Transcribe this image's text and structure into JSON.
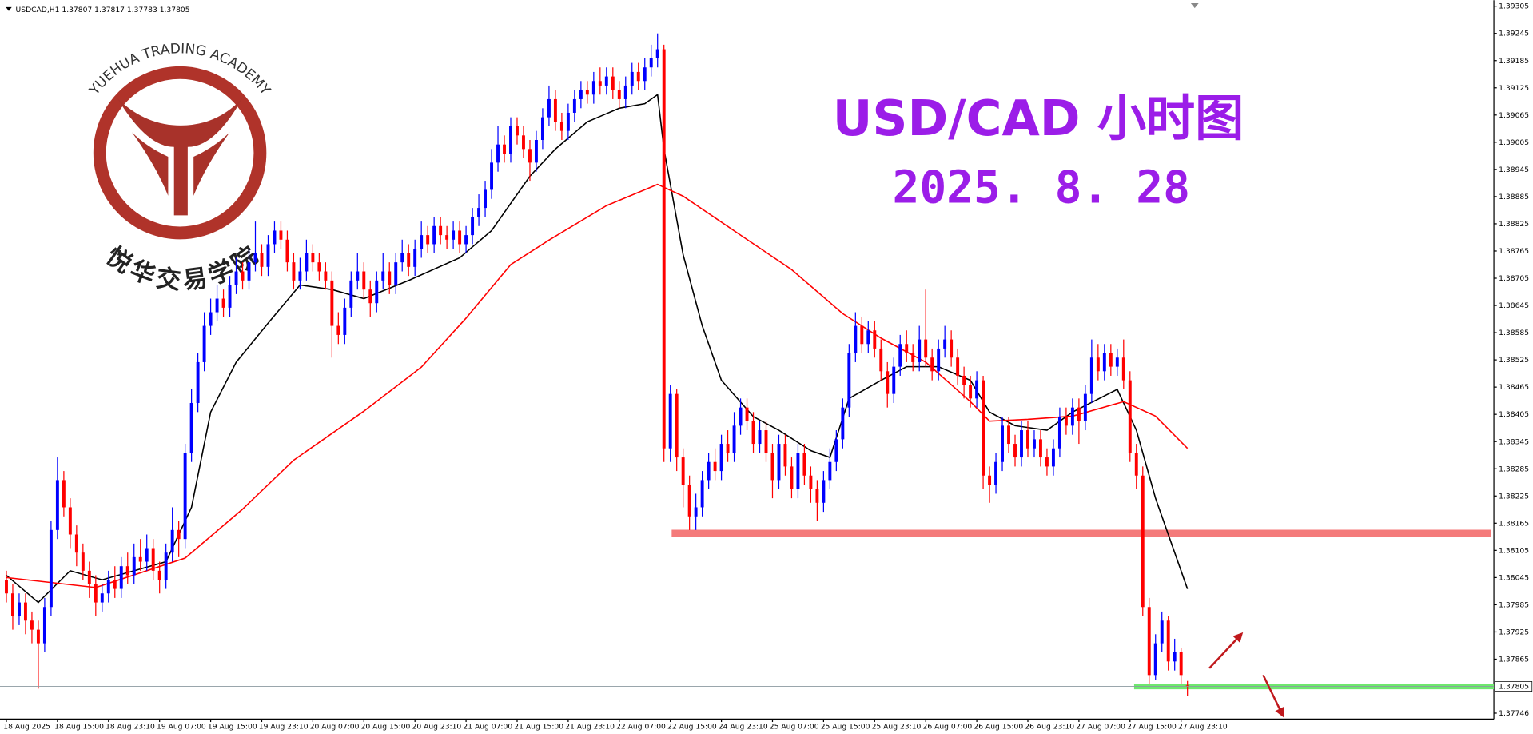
{
  "chart_data": {
    "type": "candlestick",
    "header": "USDCAD,H1 1.37807 1.37817 1.37783 1.37805",
    "title": "USD/CAD 小时图",
    "subtitle": "2025. 8. 28",
    "watermark": {
      "arc_text": "YUEHUA TRADING ACADEMY",
      "name": "悦华交易学院"
    },
    "up_color": "#0000ff",
    "down_color": "#ff0000",
    "title_color": "#9b1de8",
    "xlim": [
      -1,
      233
    ],
    "ylim": [
      1.37733,
      1.39318
    ],
    "xticks": [
      {
        "value": 0,
        "label": "18 Aug 2025"
      },
      {
        "value": 8,
        "label": "18 Aug 15:00"
      },
      {
        "value": 16,
        "label": "18 Aug 23:10"
      },
      {
        "value": 24,
        "label": "19 Aug 07:00"
      },
      {
        "value": 32,
        "label": "19 Aug 15:00"
      },
      {
        "value": 40,
        "label": "19 Aug 23:10"
      },
      {
        "value": 48,
        "label": "20 Aug 07:00"
      },
      {
        "value": 56,
        "label": "20 Aug 15:00"
      },
      {
        "value": 64,
        "label": "20 Aug 23:10"
      },
      {
        "value": 72,
        "label": "21 Aug 07:00"
      },
      {
        "value": 80,
        "label": "21 Aug 15:00"
      },
      {
        "value": 88,
        "label": "21 Aug 23:10"
      },
      {
        "value": 96,
        "label": "22 Aug 07:00"
      },
      {
        "value": 104,
        "label": "22 Aug 15:00"
      },
      {
        "value": 112,
        "label": "24 Aug 23:10"
      },
      {
        "value": 120,
        "label": "25 Aug 07:00"
      },
      {
        "value": 128,
        "label": "25 Aug 15:00"
      },
      {
        "value": 136,
        "label": "25 Aug 23:10"
      },
      {
        "value": 144,
        "label": "26 Aug 07:00"
      },
      {
        "value": 152,
        "label": "26 Aug 15:00"
      },
      {
        "value": 160,
        "label": "26 Aug 23:10"
      },
      {
        "value": 168,
        "label": "27 Aug 07:00"
      },
      {
        "value": 176,
        "label": "27 Aug 15:00"
      },
      {
        "value": 184,
        "label": "27 Aug 23:10"
      }
    ],
    "yticks": [
      1.39305,
      1.39245,
      1.39185,
      1.39125,
      1.39065,
      1.39005,
      1.38945,
      1.38885,
      1.38825,
      1.38765,
      1.38705,
      1.38645,
      1.38585,
      1.38525,
      1.38465,
      1.38405,
      1.38345,
      1.38285,
      1.38225,
      1.38165,
      1.38105,
      1.38045,
      1.37985,
      1.37925,
      1.37865,
      1.37746
    ],
    "open": [
      1.3804,
      1.3801,
      1.3796,
      1.3799,
      1.3795,
      1.3793,
      1.379,
      1.3798,
      1.3815,
      1.3826,
      1.382,
      1.3814,
      1.381,
      1.3806,
      1.3803,
      1.3799,
      1.3801,
      1.3804,
      1.3802,
      1.3807,
      1.3805,
      1.3809,
      1.3808,
      1.3811,
      1.3806,
      1.3804,
      1.381,
      1.3815,
      1.3813,
      1.3832,
      1.3843,
      1.3852,
      1.386,
      1.3863,
      1.3866,
      1.3864,
      1.3869,
      1.3872,
      1.387,
      1.3874,
      1.3876,
      1.3873,
      1.3878,
      1.3881,
      1.3879,
      1.3874,
      1.387,
      1.3872,
      1.3876,
      1.3874,
      1.3872,
      1.387,
      1.386,
      1.3858,
      1.3864,
      1.387,
      1.3872,
      1.3868,
      1.3865,
      1.387,
      1.3872,
      1.3869,
      1.3874,
      1.3876,
      1.3873,
      1.3877,
      1.388,
      1.3878,
      1.3882,
      1.388,
      1.3879,
      1.3881,
      1.3878,
      1.388,
      1.3884,
      1.3886,
      1.389,
      1.3896,
      1.39,
      1.3898,
      1.3904,
      1.3902,
      1.3899,
      1.3896,
      1.3901,
      1.3906,
      1.391,
      1.3905,
      1.3903,
      1.3907,
      1.391,
      1.3912,
      1.3911,
      1.3914,
      1.3913,
      1.3915,
      1.3912,
      1.391,
      1.3913,
      1.3916,
      1.3914,
      1.3917,
      1.3919,
      1.3921,
      1.3833,
      1.3845,
      1.3831,
      1.3825,
      1.3818,
      1.382,
      1.3826,
      1.383,
      1.3828,
      1.3834,
      1.3832,
      1.3838,
      1.3842,
      1.3839,
      1.3834,
      1.3837,
      1.3832,
      1.3826,
      1.3834,
      1.3829,
      1.3824,
      1.3832,
      1.3827,
      1.3824,
      1.3821,
      1.3826,
      1.383,
      1.3835,
      1.3842,
      1.3854,
      1.386,
      1.3856,
      1.3859,
      1.3855,
      1.385,
      1.3845,
      1.3851,
      1.3856,
      1.3854,
      1.3852,
      1.3857,
      1.3853,
      1.385,
      1.3855,
      1.3857,
      1.3853,
      1.3849,
      1.3847,
      1.3844,
      1.3848,
      1.3827,
      1.3825,
      1.383,
      1.3838,
      1.3834,
      1.3831,
      1.3837,
      1.3833,
      1.3835,
      1.3831,
      1.3829,
      1.3833,
      1.384,
      1.3838,
      1.3842,
      1.3839,
      1.3845,
      1.3853,
      1.385,
      1.3854,
      1.3851,
      1.3853,
      1.3848,
      1.3832,
      1.3827,
      1.3798,
      1.3783,
      1.379,
      1.3795,
      1.3786,
      1.3788,
      1.37807
    ],
    "high": [
      1.3806,
      1.3803,
      1.3801,
      1.3801,
      1.3797,
      1.3795,
      1.38,
      1.3817,
      1.3831,
      1.3828,
      1.3822,
      1.3816,
      1.3812,
      1.3808,
      1.3805,
      1.3803,
      1.3806,
      1.3807,
      1.3809,
      1.381,
      1.3812,
      1.3813,
      1.3814,
      1.3813,
      1.3808,
      1.3812,
      1.382,
      1.3817,
      1.3834,
      1.3846,
      1.3854,
      1.3863,
      1.3866,
      1.3869,
      1.3868,
      1.3871,
      1.3875,
      1.3874,
      1.3877,
      1.3883,
      1.3878,
      1.388,
      1.3883,
      1.3883,
      1.3881,
      1.3876,
      1.3875,
      1.3879,
      1.3878,
      1.3876,
      1.3874,
      1.3872,
      1.3863,
      1.3866,
      1.3872,
      1.3876,
      1.3874,
      1.387,
      1.3872,
      1.3876,
      1.3874,
      1.3876,
      1.3879,
      1.3878,
      1.3879,
      1.3883,
      1.3882,
      1.3884,
      1.3884,
      1.3882,
      1.3883,
      1.3883,
      1.3882,
      1.3886,
      1.3889,
      1.3892,
      1.3899,
      1.3904,
      1.3902,
      1.3906,
      1.3906,
      1.3904,
      1.3901,
      1.3903,
      1.3908,
      1.3913,
      1.3912,
      1.3907,
      1.3909,
      1.3912,
      1.3914,
      1.3914,
      1.3916,
      1.3917,
      1.3917,
      1.3917,
      1.3914,
      1.3915,
      1.3918,
      1.3918,
      1.3919,
      1.3922,
      1.39245,
      1.3922,
      1.3847,
      1.3846,
      1.3833,
      1.3827,
      1.3823,
      1.3828,
      1.3832,
      1.3833,
      1.3836,
      1.3837,
      1.3841,
      1.3844,
      1.3844,
      1.3841,
      1.3839,
      1.3839,
      1.3834,
      1.3836,
      1.3836,
      1.3831,
      1.3834,
      1.3834,
      1.3829,
      1.3826,
      1.3828,
      1.3833,
      1.3837,
      1.3844,
      1.3856,
      1.3863,
      1.3862,
      1.3861,
      1.3861,
      1.3857,
      1.3852,
      1.3853,
      1.3858,
      1.3859,
      1.3856,
      1.386,
      1.3868,
      1.3855,
      1.3857,
      1.386,
      1.3859,
      1.3855,
      1.3851,
      1.3849,
      1.385,
      1.3849,
      1.3829,
      1.3832,
      1.384,
      1.384,
      1.3836,
      1.3839,
      1.3839,
      1.3837,
      1.3837,
      1.3833,
      1.3835,
      1.3842,
      1.3842,
      1.3844,
      1.3844,
      1.3847,
      1.3857,
      1.3856,
      1.3856,
      1.3856,
      1.3855,
      1.3857,
      1.385,
      1.3834,
      1.3829,
      1.38,
      1.3792,
      1.3797,
      1.3796,
      1.3791,
      1.3789,
      1.37817
    ],
    "low": [
      1.3799,
      1.3793,
      1.3794,
      1.3792,
      1.379,
      1.378,
      1.3788,
      1.3796,
      1.3813,
      1.3818,
      1.3811,
      1.3807,
      1.3804,
      1.38,
      1.3796,
      1.3797,
      1.3799,
      1.38,
      1.38,
      1.3803,
      1.3803,
      1.3806,
      1.3806,
      1.3804,
      1.3801,
      1.3802,
      1.3808,
      1.3809,
      1.3811,
      1.383,
      1.3841,
      1.385,
      1.3858,
      1.3861,
      1.3862,
      1.3862,
      1.3867,
      1.3868,
      1.3868,
      1.3872,
      1.3871,
      1.3871,
      1.3876,
      1.3877,
      1.3872,
      1.3868,
      1.3868,
      1.387,
      1.3872,
      1.387,
      1.3868,
      1.3853,
      1.3856,
      1.3856,
      1.3862,
      1.3868,
      1.3866,
      1.3862,
      1.3863,
      1.3868,
      1.3867,
      1.3867,
      1.3872,
      1.3871,
      1.3871,
      1.3875,
      1.3876,
      1.3876,
      1.3878,
      1.3877,
      1.3877,
      1.3876,
      1.3876,
      1.3878,
      1.3882,
      1.3884,
      1.3888,
      1.3894,
      1.3896,
      1.3896,
      1.39,
      1.3897,
      1.3892,
      1.3894,
      1.3899,
      1.3904,
      1.3903,
      1.3901,
      1.3901,
      1.3905,
      1.3908,
      1.3909,
      1.3909,
      1.3911,
      1.3911,
      1.391,
      1.3908,
      1.3908,
      1.3911,
      1.3912,
      1.3912,
      1.3915,
      1.3917,
      1.383,
      1.383,
      1.3828,
      1.382,
      1.3815,
      1.3815,
      1.3818,
      1.3824,
      1.3826,
      1.3826,
      1.383,
      1.383,
      1.3836,
      1.3837,
      1.3832,
      1.3832,
      1.383,
      1.3822,
      1.3824,
      1.3827,
      1.3822,
      1.3822,
      1.3825,
      1.3821,
      1.3817,
      1.3819,
      1.3824,
      1.3828,
      1.3833,
      1.384,
      1.3852,
      1.3854,
      1.3854,
      1.3853,
      1.3848,
      1.3842,
      1.3843,
      1.3849,
      1.3852,
      1.385,
      1.385,
      1.3851,
      1.3848,
      1.3848,
      1.3853,
      1.3851,
      1.3847,
      1.3844,
      1.3842,
      1.3842,
      1.3824,
      1.3821,
      1.3823,
      1.3828,
      1.3832,
      1.3829,
      1.3829,
      1.3831,
      1.3831,
      1.3829,
      1.3827,
      1.3827,
      1.3831,
      1.3836,
      1.3836,
      1.3834,
      1.3837,
      1.3843,
      1.3848,
      1.3848,
      1.3849,
      1.3849,
      1.3846,
      1.383,
      1.3824,
      1.3796,
      1.3781,
      1.3782,
      1.3788,
      1.3784,
      1.3784,
      1.3781,
      1.37783
    ],
    "close": [
      1.3801,
      1.3796,
      1.3799,
      1.3795,
      1.3793,
      1.379,
      1.3798,
      1.3815,
      1.3826,
      1.382,
      1.3814,
      1.381,
      1.3806,
      1.3803,
      1.3799,
      1.3801,
      1.3804,
      1.3802,
      1.3807,
      1.3805,
      1.3809,
      1.3808,
      1.3811,
      1.3806,
      1.3804,
      1.381,
      1.3815,
      1.3813,
      1.3832,
      1.3843,
      1.3852,
      1.386,
      1.3863,
      1.3866,
      1.3864,
      1.3869,
      1.3872,
      1.387,
      1.3874,
      1.3876,
      1.3873,
      1.3878,
      1.3881,
      1.3879,
      1.3874,
      1.387,
      1.3872,
      1.3876,
      1.3874,
      1.3872,
      1.387,
      1.386,
      1.3858,
      1.3864,
      1.387,
      1.3872,
      1.3868,
      1.3865,
      1.387,
      1.3872,
      1.3869,
      1.3874,
      1.3876,
      1.3873,
      1.3877,
      1.388,
      1.3878,
      1.3882,
      1.388,
      1.3879,
      1.3881,
      1.3878,
      1.388,
      1.3884,
      1.3886,
      1.389,
      1.3896,
      1.39,
      1.3898,
      1.3904,
      1.3902,
      1.3899,
      1.3896,
      1.3901,
      1.3906,
      1.391,
      1.3905,
      1.3903,
      1.3907,
      1.391,
      1.3912,
      1.3911,
      1.3914,
      1.3913,
      1.3915,
      1.3912,
      1.391,
      1.3913,
      1.3916,
      1.3914,
      1.3917,
      1.3919,
      1.3921,
      1.3833,
      1.3845,
      1.3831,
      1.3825,
      1.3818,
      1.382,
      1.3826,
      1.383,
      1.3828,
      1.3834,
      1.3832,
      1.3838,
      1.3842,
      1.3839,
      1.3834,
      1.3837,
      1.3832,
      1.3826,
      1.3834,
      1.3829,
      1.3824,
      1.3832,
      1.3827,
      1.3824,
      1.3821,
      1.3826,
      1.383,
      1.3835,
      1.3842,
      1.3854,
      1.386,
      1.3856,
      1.3859,
      1.3855,
      1.385,
      1.3845,
      1.3851,
      1.3856,
      1.3854,
      1.3852,
      1.3857,
      1.3853,
      1.385,
      1.3855,
      1.3857,
      1.3853,
      1.3849,
      1.3847,
      1.3844,
      1.3848,
      1.3827,
      1.3825,
      1.383,
      1.3838,
      1.3834,
      1.3831,
      1.3837,
      1.3833,
      1.3835,
      1.3831,
      1.3829,
      1.3833,
      1.384,
      1.3838,
      1.3842,
      1.3839,
      1.3845,
      1.3853,
      1.385,
      1.3854,
      1.3851,
      1.3853,
      1.3848,
      1.3832,
      1.3827,
      1.3798,
      1.3783,
      1.379,
      1.3795,
      1.3786,
      1.3788,
      1.3783,
      1.37805
    ],
    "series": [
      {
        "color": "#000000",
        "x": [
          0,
          5,
          10,
          15,
          20,
          25,
          29,
          32,
          36,
          41,
          46,
          51,
          56,
          63,
          71,
          76,
          82,
          86,
          91,
          96,
          100,
          102,
          103,
          106,
          109,
          112,
          117,
          121,
          126,
          129,
          132,
          137,
          141,
          146,
          151,
          154,
          158,
          163,
          167,
          174,
          177,
          180,
          185
        ],
        "values": [
          1.3805,
          1.3799,
          1.3806,
          1.3804,
          1.3806,
          1.3808,
          1.382,
          1.3841,
          1.3852,
          1.38606,
          1.3869,
          1.3868,
          1.3866,
          1.387,
          1.3875,
          1.3881,
          1.3893,
          1.3899,
          1.3905,
          1.3908,
          1.3909,
          1.3911,
          1.3899,
          1.38757,
          1.386,
          1.3848,
          1.384,
          1.3837,
          1.38325,
          1.3831,
          1.3844,
          1.3848,
          1.3851,
          1.3851,
          1.3848,
          1.3841,
          1.3838,
          1.3837,
          1.3841,
          1.3846,
          1.3837,
          1.3822,
          1.3802
        ]
      },
      {
        "color": "#ff0000",
        "x": [
          0,
          14,
          28,
          37,
          45,
          56,
          65,
          72,
          79,
          85,
          94,
          102,
          106,
          115,
          123,
          131,
          137,
          144,
          151,
          154,
          160,
          167,
          175,
          180,
          185
        ],
        "values": [
          1.38045,
          1.38023,
          1.38088,
          1.38196,
          1.38304,
          1.38412,
          1.38509,
          1.38617,
          1.38735,
          1.38789,
          1.38865,
          1.38912,
          1.38886,
          1.388,
          1.38724,
          1.38627,
          1.38573,
          1.3852,
          1.38433,
          1.3839,
          1.38394,
          1.38401,
          1.38433,
          1.38401,
          1.3833
        ]
      }
    ],
    "levels": [
      {
        "value": 1.38143,
        "color": "#f47a7a"
      },
      {
        "value": 1.37804,
        "color": "#6ee86e"
      }
    ]
  }
}
